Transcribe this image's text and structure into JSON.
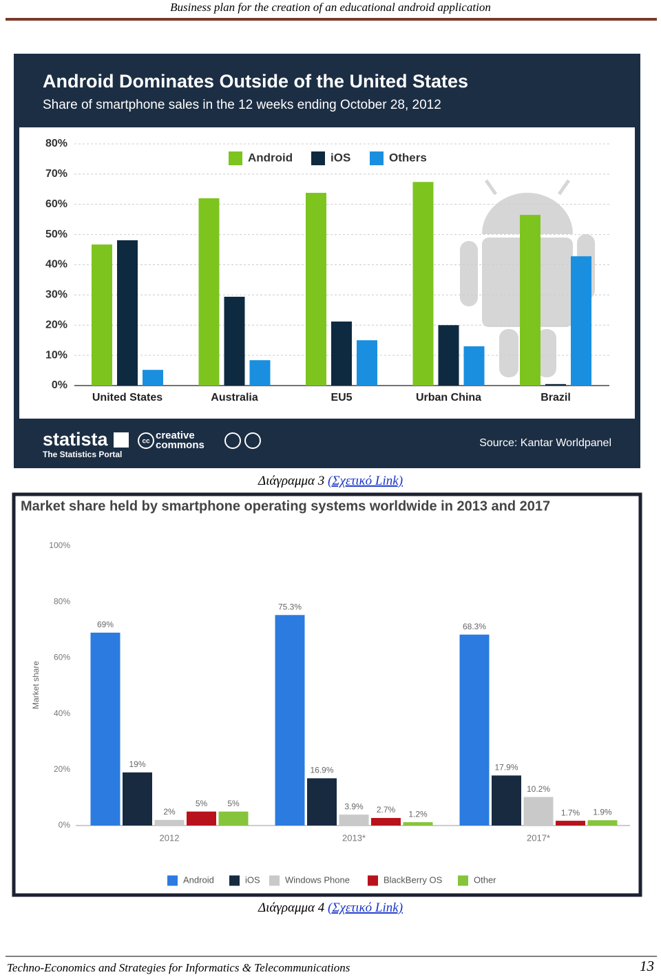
{
  "header": {
    "title": "Business plan for the creation of an educational android application"
  },
  "chart_data": [
    {
      "type": "bar",
      "title": "Android Dominates Outside of the United States",
      "subtitle": "Share of smartphone sales in the 12 weeks ending October 28, 2012",
      "categories": [
        "United States",
        "Australia",
        "EU5",
        "Urban China",
        "Brazil"
      ],
      "series": [
        {
          "name": "Android",
          "color": "#7dc41f",
          "values": [
            46.7,
            62,
            63.8,
            67.4,
            56.5
          ]
        },
        {
          "name": "iOS",
          "color": "#0d2a40",
          "values": [
            48.1,
            29.4,
            21.2,
            20,
            0.5
          ]
        },
        {
          "name": "Others",
          "color": "#1a8fe0",
          "values": [
            5.2,
            8.4,
            15,
            13,
            42.8
          ]
        }
      ],
      "ylim": [
        0,
        80
      ],
      "yticks": [
        {
          "value": 0,
          "label": "0%"
        },
        {
          "value": 10,
          "label": "10%"
        },
        {
          "value": 20,
          "label": "20%"
        },
        {
          "value": 30,
          "label": "30%"
        },
        {
          "value": 40,
          "label": "40%"
        },
        {
          "value": 50,
          "label": "50%"
        },
        {
          "value": 60,
          "label": "60%"
        },
        {
          "value": 70,
          "label": "70%"
        },
        {
          "value": 80,
          "label": "80%"
        }
      ],
      "grid": true,
      "brand": "statista",
      "brand_subtitle": "The Statistics Portal",
      "license": {
        "icon": "cc",
        "lines": [
          "creative",
          "commons"
        ]
      },
      "source": "Source: Kantar Worldpanel"
    },
    {
      "type": "bar",
      "title": "Market share held by smartphone operating systems worldwide in 2013 and 2017",
      "ylabel": "Market share",
      "categories": [
        "2012",
        "2013*",
        "2017*"
      ],
      "series": [
        {
          "name": "Android",
          "color": "#2b7be0",
          "values": [
            69,
            75.3,
            68.3
          ],
          "value_labels": [
            "69%",
            "75.3%",
            "68.3%"
          ]
        },
        {
          "name": "iOS",
          "color": "#172a40",
          "values": [
            19,
            16.9,
            17.9
          ],
          "value_labels": [
            "19%",
            "16.9%",
            "17.9%"
          ]
        },
        {
          "name": "Windows Phone",
          "color": "#c9c9c9",
          "values": [
            2,
            3.9,
            10.2
          ],
          "value_labels": [
            "2%",
            "3.9%",
            "10.2%"
          ]
        },
        {
          "name": "BlackBerry OS",
          "color": "#b8121c",
          "values": [
            5,
            2.7,
            1.7
          ],
          "value_labels": [
            "5%",
            "2.7%",
            "1.7%"
          ]
        },
        {
          "name": "Other",
          "color": "#86c43b",
          "values": [
            5,
            1.2,
            1.9
          ],
          "value_labels": [
            "5%",
            "1.2%",
            "1.9%"
          ]
        }
      ],
      "ylim": [
        0,
        100
      ],
      "yticks": [
        {
          "value": 0,
          "label": "0%"
        },
        {
          "value": 20,
          "label": "20%"
        },
        {
          "value": 40,
          "label": "40%"
        },
        {
          "value": 60,
          "label": "60%"
        },
        {
          "value": 80,
          "label": "80%"
        },
        {
          "value": 100,
          "label": "100%"
        }
      ],
      "grid": false
    }
  ],
  "captions": [
    {
      "label": "Διάγραμμα 3",
      "link": "(Σχετικό Link)"
    },
    {
      "label": "Διάγραμμα 4",
      "link": "(Σχετικό Link)"
    }
  ],
  "footer": {
    "text": "Techno-Economics and Strategies for Informatics & Telecommunications",
    "page": "13"
  }
}
